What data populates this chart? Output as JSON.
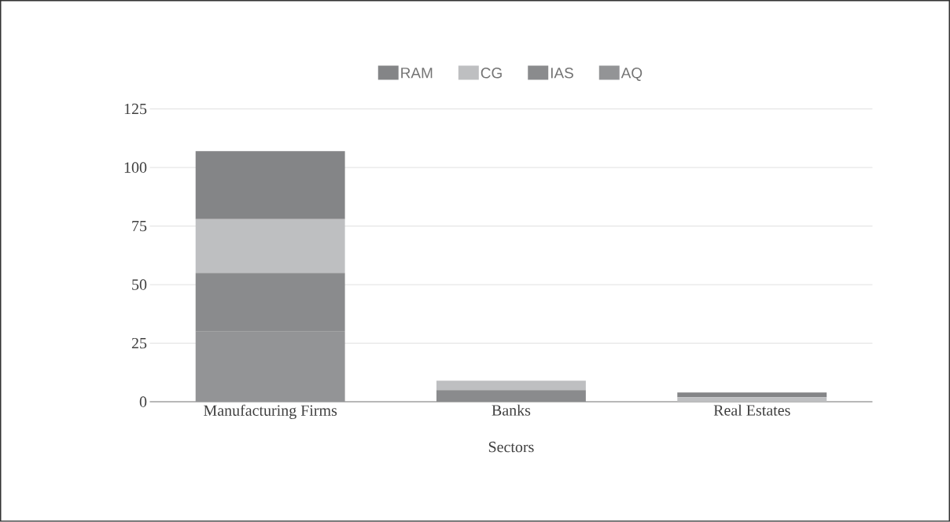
{
  "chart_data": {
    "type": "bar",
    "stacked": true,
    "categories": [
      "Manufacturing Firms",
      "Banks",
      "Real Estates"
    ],
    "xlabel": "Sectors",
    "ylim": [
      0,
      125
    ],
    "yticks": [
      0,
      25,
      50,
      75,
      100,
      125
    ],
    "grid": "y",
    "legend": "top",
    "series": [
      {
        "name": "AQ",
        "color": "#939496",
        "values": [
          30,
          0,
          0
        ]
      },
      {
        "name": "IAS",
        "color": "#8a8b8d",
        "values": [
          25,
          5,
          0
        ]
      },
      {
        "name": "CG",
        "color": "#bebfc1",
        "values": [
          23,
          4,
          2
        ]
      },
      {
        "name": "RAM",
        "color": "#848587",
        "values": [
          29,
          0,
          2
        ]
      }
    ]
  }
}
